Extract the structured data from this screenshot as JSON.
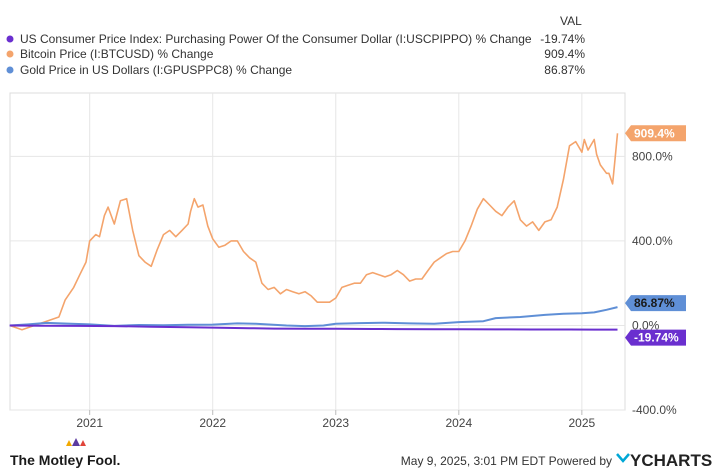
{
  "chart_data": {
    "type": "line",
    "legend_header": "VAL",
    "legend_position": "top-left",
    "y_unit": "% Change",
    "x_ticks": [
      "2021",
      "2022",
      "2023",
      "2024",
      "2025"
    ],
    "y_ticks": [
      "-400.0%",
      "0.0%",
      "400.0%",
      "800.0%"
    ],
    "xlim": [
      "2020-05-09",
      "2025-05-09"
    ],
    "ylim": [
      -400,
      1100
    ],
    "grid": true,
    "series": [
      {
        "name": "US Consumer Price Index: Purchasing Power Of the Consumer Dollar (I:USCPIPPO) % Change",
        "value_label": "-19.74%",
        "color": "#6a2fcf",
        "points": [
          [
            2020.35,
            0
          ],
          [
            2020.6,
            -1
          ],
          [
            2020.9,
            -2
          ],
          [
            2021.2,
            -3
          ],
          [
            2021.5,
            -6
          ],
          [
            2021.8,
            -8
          ],
          [
            2022.0,
            -10
          ],
          [
            2022.3,
            -13
          ],
          [
            2022.5,
            -15
          ],
          [
            2022.8,
            -15.5
          ],
          [
            2023.0,
            -16
          ],
          [
            2023.3,
            -16.5
          ],
          [
            2023.5,
            -17
          ],
          [
            2023.8,
            -17.8
          ],
          [
            2024.0,
            -18
          ],
          [
            2024.3,
            -18.5
          ],
          [
            2024.6,
            -19
          ],
          [
            2024.9,
            -19.3
          ],
          [
            2025.1,
            -19.5
          ],
          [
            2025.29,
            -19.74
          ]
        ]
      },
      {
        "name": "Bitcoin Price (I:BTCUSD) % Change",
        "value_label": "909.4%",
        "color": "#f4a46c",
        "points": [
          [
            2020.35,
            0
          ],
          [
            2020.45,
            -20
          ],
          [
            2020.55,
            0
          ],
          [
            2020.65,
            20
          ],
          [
            2020.75,
            40
          ],
          [
            2020.8,
            120
          ],
          [
            2020.87,
            180
          ],
          [
            2020.92,
            240
          ],
          [
            2020.97,
            300
          ],
          [
            2021.0,
            400
          ],
          [
            2021.05,
            430
          ],
          [
            2021.08,
            420
          ],
          [
            2021.12,
            520
          ],
          [
            2021.15,
            560
          ],
          [
            2021.2,
            480
          ],
          [
            2021.25,
            590
          ],
          [
            2021.3,
            600
          ],
          [
            2021.35,
            450
          ],
          [
            2021.4,
            330
          ],
          [
            2021.45,
            300
          ],
          [
            2021.5,
            280
          ],
          [
            2021.55,
            360
          ],
          [
            2021.6,
            430
          ],
          [
            2021.65,
            450
          ],
          [
            2021.7,
            420
          ],
          [
            2021.75,
            450
          ],
          [
            2021.8,
            480
          ],
          [
            2021.82,
            540
          ],
          [
            2021.85,
            600
          ],
          [
            2021.88,
            560
          ],
          [
            2021.92,
            570
          ],
          [
            2021.96,
            470
          ],
          [
            2022.0,
            410
          ],
          [
            2022.05,
            370
          ],
          [
            2022.1,
            380
          ],
          [
            2022.15,
            400
          ],
          [
            2022.2,
            400
          ],
          [
            2022.25,
            350
          ],
          [
            2022.3,
            320
          ],
          [
            2022.35,
            300
          ],
          [
            2022.4,
            200
          ],
          [
            2022.45,
            170
          ],
          [
            2022.5,
            180
          ],
          [
            2022.55,
            150
          ],
          [
            2022.6,
            170
          ],
          [
            2022.65,
            160
          ],
          [
            2022.7,
            150
          ],
          [
            2022.75,
            160
          ],
          [
            2022.8,
            140
          ],
          [
            2022.85,
            110
          ],
          [
            2022.9,
            110
          ],
          [
            2022.95,
            110
          ],
          [
            2023.0,
            130
          ],
          [
            2023.05,
            180
          ],
          [
            2023.1,
            190
          ],
          [
            2023.15,
            200
          ],
          [
            2023.2,
            200
          ],
          [
            2023.25,
            240
          ],
          [
            2023.3,
            250
          ],
          [
            2023.35,
            240
          ],
          [
            2023.4,
            230
          ],
          [
            2023.45,
            240
          ],
          [
            2023.5,
            260
          ],
          [
            2023.55,
            240
          ],
          [
            2023.6,
            210
          ],
          [
            2023.65,
            220
          ],
          [
            2023.7,
            220
          ],
          [
            2023.75,
            260
          ],
          [
            2023.8,
            300
          ],
          [
            2023.85,
            320
          ],
          [
            2023.9,
            340
          ],
          [
            2023.95,
            350
          ],
          [
            2024.0,
            350
          ],
          [
            2024.05,
            400
          ],
          [
            2024.1,
            470
          ],
          [
            2024.15,
            550
          ],
          [
            2024.2,
            600
          ],
          [
            2024.25,
            570
          ],
          [
            2024.3,
            540
          ],
          [
            2024.35,
            520
          ],
          [
            2024.4,
            560
          ],
          [
            2024.45,
            590
          ],
          [
            2024.5,
            500
          ],
          [
            2024.55,
            470
          ],
          [
            2024.6,
            490
          ],
          [
            2024.65,
            450
          ],
          [
            2024.7,
            490
          ],
          [
            2024.75,
            500
          ],
          [
            2024.8,
            560
          ],
          [
            2024.85,
            690
          ],
          [
            2024.9,
            850
          ],
          [
            2024.95,
            870
          ],
          [
            2025.0,
            820
          ],
          [
            2025.02,
            880
          ],
          [
            2025.05,
            830
          ],
          [
            2025.1,
            880
          ],
          [
            2025.12,
            810
          ],
          [
            2025.15,
            760
          ],
          [
            2025.2,
            720
          ],
          [
            2025.22,
            720
          ],
          [
            2025.25,
            670
          ],
          [
            2025.27,
            790
          ],
          [
            2025.29,
            909.4
          ]
        ]
      },
      {
        "name": "Gold Price in US Dollars (I:GPUSPPC8) % Change",
        "value_label": "86.87%",
        "color": "#5f8fd6",
        "points": [
          [
            2020.35,
            0
          ],
          [
            2020.5,
            5
          ],
          [
            2020.65,
            12
          ],
          [
            2020.85,
            8
          ],
          [
            2021.0,
            5
          ],
          [
            2021.2,
            -2
          ],
          [
            2021.4,
            2
          ],
          [
            2021.6,
            1
          ],
          [
            2021.8,
            3
          ],
          [
            2022.0,
            4
          ],
          [
            2022.2,
            10
          ],
          [
            2022.35,
            8
          ],
          [
            2022.6,
            0
          ],
          [
            2022.75,
            -3
          ],
          [
            2022.9,
            0
          ],
          [
            2023.0,
            8
          ],
          [
            2023.2,
            11
          ],
          [
            2023.4,
            13
          ],
          [
            2023.6,
            10
          ],
          [
            2023.8,
            8
          ],
          [
            2024.0,
            16
          ],
          [
            2024.2,
            20
          ],
          [
            2024.3,
            35
          ],
          [
            2024.5,
            40
          ],
          [
            2024.7,
            50
          ],
          [
            2024.85,
            55
          ],
          [
            2025.0,
            58
          ],
          [
            2025.1,
            62
          ],
          [
            2025.2,
            74
          ],
          [
            2025.29,
            86.87
          ]
        ]
      }
    ]
  },
  "footer": {
    "brand": "The Motley Fool.",
    "timestamp": "May 9, 2025, 3:01 PM EDT  Powered by",
    "provider": "YCHARTS"
  }
}
